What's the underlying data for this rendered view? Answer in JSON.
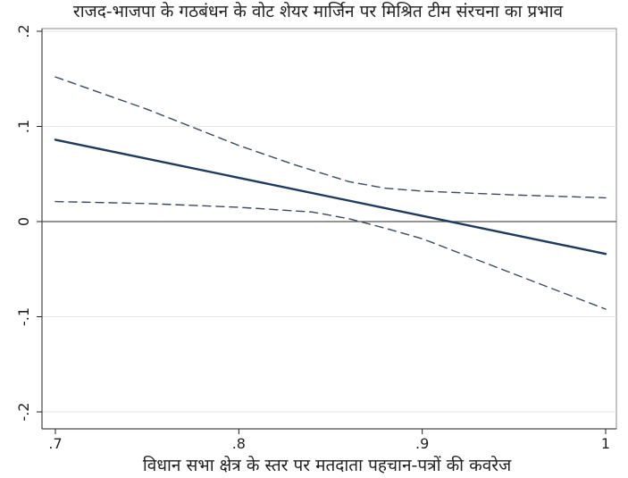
{
  "chart_data": {
    "type": "line",
    "title": "राजद-भाजपा के गठबंधन के वोट शेयर मार्जिन पर मिश्रित टीम संरचना का प्रभाव",
    "xlabel": "विधान सभा क्षेत्र के स्तर पर मतदाता पहचान-पत्रों की कवरेज",
    "ylabel": "",
    "xlim": [
      0.7,
      1.0
    ],
    "ylim": [
      -0.2,
      0.2
    ],
    "x_ticks": [
      0.7,
      0.8,
      0.9,
      1.0
    ],
    "x_tick_labels": [
      ".7",
      ".8",
      ".9",
      "1"
    ],
    "y_ticks": [
      -0.2,
      -0.1,
      0,
      0.1,
      0.2
    ],
    "y_tick_labels": [
      "-.2",
      "-.1",
      "0",
      ".1",
      ".2"
    ],
    "grid": true,
    "reference_line_y": 0,
    "colors": {
      "estimate": "#1f3a5f",
      "ci": "#3a4a60",
      "grid": "#e6e6e6",
      "reference": "#555555"
    },
    "series": [
      {
        "role": "estimate",
        "style": "solid",
        "x": [
          0.7,
          1.0
        ],
        "y": [
          0.086,
          -0.034
        ]
      },
      {
        "role": "upper_ci",
        "style": "dashed",
        "x": [
          0.7,
          0.75,
          0.8,
          0.83,
          0.86,
          0.88,
          0.9,
          0.95,
          1.0
        ],
        "y": [
          0.152,
          0.118,
          0.08,
          0.06,
          0.042,
          0.035,
          0.032,
          0.028,
          0.025
        ]
      },
      {
        "role": "lower_ci",
        "style": "dashed",
        "x": [
          0.7,
          0.75,
          0.8,
          0.84,
          0.86,
          0.88,
          0.9,
          0.95,
          1.0
        ],
        "y": [
          0.021,
          0.019,
          0.015,
          0.01,
          0.003,
          -0.007,
          -0.018,
          -0.055,
          -0.092
        ]
      }
    ]
  }
}
